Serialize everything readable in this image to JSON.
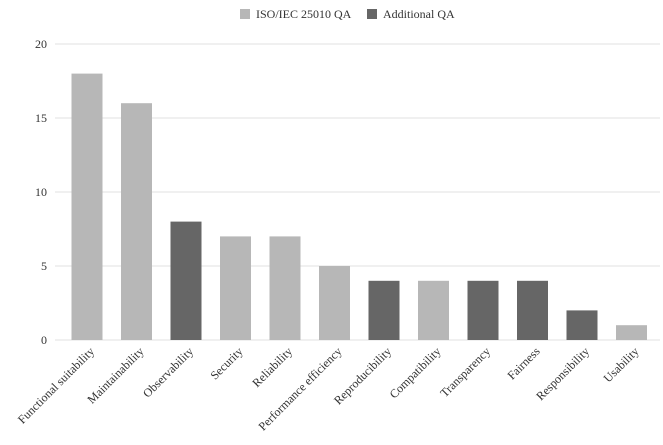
{
  "chart_data": {
    "type": "bar",
    "categories": [
      "Functional suitability",
      "Maintainability",
      "Observability",
      "Security",
      "Reliability",
      "Performance efficiency",
      "Reproducibility",
      "Compatibility",
      "Transparency",
      "Fairness",
      "Responsibility",
      "Usability"
    ],
    "values": [
      18,
      16,
      8,
      7,
      7,
      5,
      4,
      4,
      4,
      4,
      2,
      1
    ],
    "groups": [
      "ISO/IEC 25010 QA",
      "ISO/IEC 25010 QA",
      "Additional QA",
      "ISO/IEC 25010 QA",
      "ISO/IEC 25010 QA",
      "ISO/IEC 25010 QA",
      "Additional QA",
      "ISO/IEC 25010 QA",
      "Additional QA",
      "Additional QA",
      "Additional QA",
      "ISO/IEC 25010 QA"
    ],
    "legend": [
      {
        "name": "ISO/IEC 25010 QA",
        "color": "#b7b7b7"
      },
      {
        "name": "Additional QA",
        "color": "#666666"
      }
    ],
    "legend_position": "top",
    "ylim": [
      0,
      20
    ],
    "yticks": [
      0,
      5,
      10,
      15,
      20
    ],
    "grid": true,
    "title": "",
    "xlabel": "",
    "ylabel": ""
  }
}
